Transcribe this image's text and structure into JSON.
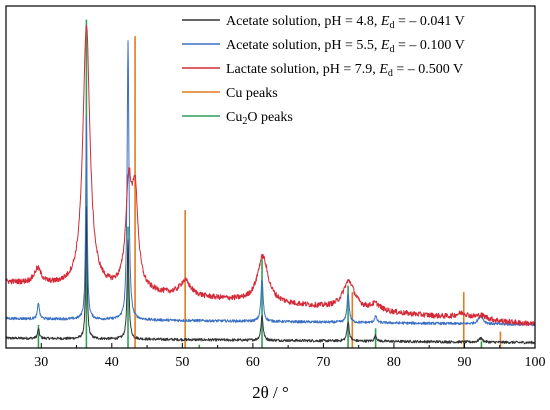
{
  "chart_data": {
    "type": "line",
    "xlabel": "2θ / °",
    "ylabel": "",
    "xlim": [
      25,
      100
    ],
    "xticks": [
      30,
      40,
      50,
      60,
      70,
      80,
      90,
      100
    ],
    "grid": false,
    "legend_position": "top-right",
    "series": [
      {
        "name": "Acetate solution, pH = 4.8, E_d = – 0.041 V",
        "legend_parts": [
          "Acetate solution, pH = 4.8, ",
          "E",
          "d",
          " = – 0.041 V"
        ],
        "color": "#333333",
        "baseline": 0.03,
        "slope_per_deg": -0.00018,
        "noise": 0.004,
        "peaks": [
          {
            "x": 29.6,
            "h": 0.03,
            "w": 0.15
          },
          {
            "x": 36.4,
            "h": 0.4,
            "w": 0.12
          },
          {
            "x": 42.3,
            "h": 0.3,
            "w": 0.15
          },
          {
            "x": 61.3,
            "h": 0.075,
            "w": 0.18
          },
          {
            "x": 73.5,
            "h": 0.06,
            "w": 0.18
          },
          {
            "x": 77.4,
            "h": 0.018,
            "w": 0.18
          },
          {
            "x": 92.3,
            "h": 0.012,
            "w": 0.3
          }
        ]
      },
      {
        "name": "Acetate solution, pH = 5.5, E_d = – 0.100 V",
        "legend_parts": [
          "Acetate solution, pH = 5.5, ",
          "E",
          "d",
          " = – 0.100 V"
        ],
        "color": "#3a6fc4",
        "baseline": 0.09,
        "slope_per_deg": -0.00025,
        "noise": 0.004,
        "peaks": [
          {
            "x": 29.6,
            "h": 0.05,
            "w": 0.15
          },
          {
            "x": 36.4,
            "h": 0.62,
            "w": 0.12
          },
          {
            "x": 42.3,
            "h": 0.85,
            "w": 0.15
          },
          {
            "x": 61.3,
            "h": 0.13,
            "w": 0.18
          },
          {
            "x": 73.5,
            "h": 0.09,
            "w": 0.18
          },
          {
            "x": 77.4,
            "h": 0.02,
            "w": 0.2
          },
          {
            "x": 92.3,
            "h": 0.025,
            "w": 0.4
          }
        ]
      },
      {
        "name": "Lactate solution, pH = 7.9, E_d = – 0.500 V",
        "legend_parts": [
          "Lactate solution, pH = 7.9, ",
          "E",
          "d",
          " = – 0.500 V"
        ],
        "color": "#d42a37",
        "baseline": 0.2,
        "slope_per_deg": -0.0017,
        "noise": 0.008,
        "peaks": [
          {
            "x": 29.5,
            "h": 0.045,
            "w": 0.6
          },
          {
            "x": 36.4,
            "h": 0.8,
            "w": 0.6
          },
          {
            "x": 42.4,
            "h": 0.3,
            "w": 0.5
          },
          {
            "x": 43.3,
            "h": 0.28,
            "w": 0.5
          },
          {
            "x": 50.4,
            "h": 0.045,
            "w": 0.9
          },
          {
            "x": 61.4,
            "h": 0.14,
            "w": 0.9
          },
          {
            "x": 73.6,
            "h": 0.085,
            "w": 1.0
          },
          {
            "x": 77.4,
            "h": 0.02,
            "w": 0.8
          },
          {
            "x": 89.7,
            "h": 0.015,
            "w": 1.0
          },
          {
            "x": 92.4,
            "h": 0.012,
            "w": 1.0
          }
        ]
      }
    ],
    "reference_peaks": [
      {
        "name": "Cu peaks",
        "legend_parts": [
          "Cu peaks"
        ],
        "color": "#e07b20",
        "lines": [
          {
            "x": 43.3,
            "h": 0.95
          },
          {
            "x": 50.4,
            "h": 0.42
          },
          {
            "x": 74.1,
            "h": 0.17
          },
          {
            "x": 89.9,
            "h": 0.17
          },
          {
            "x": 95.1,
            "h": 0.05
          }
        ]
      },
      {
        "name": "Cu2O peaks",
        "legend_parts": [
          "Cu",
          "2",
          "O peaks"
        ],
        "color": "#2e9e5b",
        "lines": [
          {
            "x": 29.6,
            "h": 0.07
          },
          {
            "x": 36.4,
            "h": 1.0
          },
          {
            "x": 42.3,
            "h": 0.37
          },
          {
            "x": 52.4,
            "h": 0.01
          },
          {
            "x": 61.3,
            "h": 0.27
          },
          {
            "x": 73.5,
            "h": 0.19
          },
          {
            "x": 77.4,
            "h": 0.06
          },
          {
            "x": 92.4,
            "h": 0.02
          }
        ]
      }
    ]
  }
}
